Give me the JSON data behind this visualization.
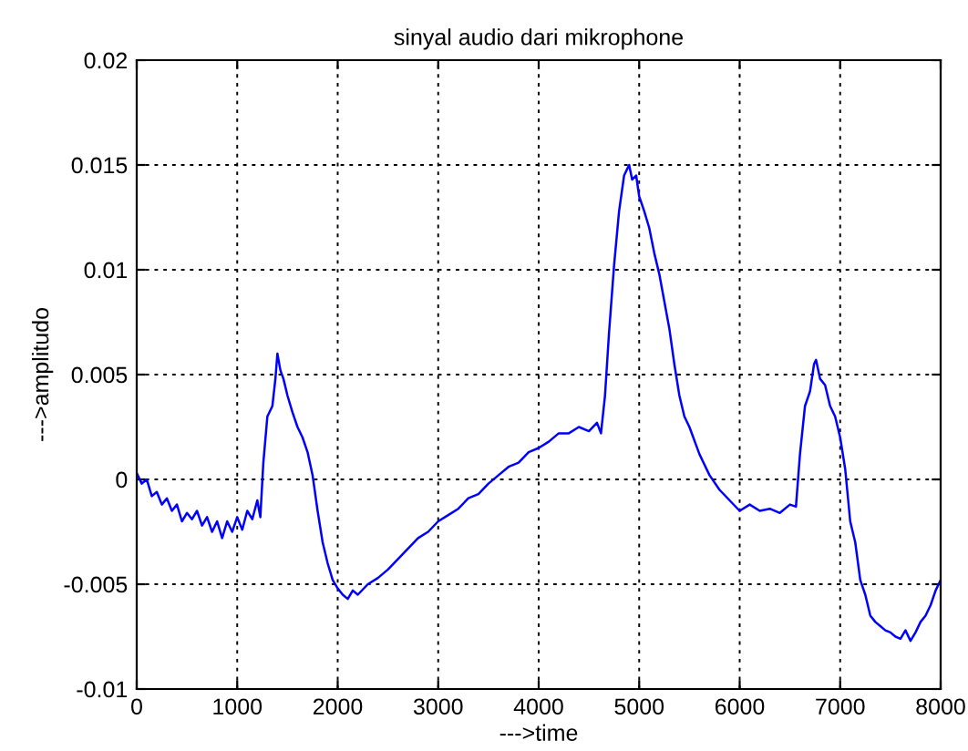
{
  "chart_data": {
    "type": "line",
    "title": "sinyal audio dari mikrophone",
    "xlabel": "--->time",
    "ylabel": "--->amplitudo",
    "series": [
      {
        "color": "#0000ff",
        "x": [
          0,
          50,
          100,
          150,
          200,
          250,
          300,
          350,
          400,
          450,
          500,
          550,
          600,
          650,
          700,
          750,
          800,
          850,
          900,
          950,
          1000,
          1050,
          1100,
          1150,
          1200,
          1230,
          1260,
          1300,
          1350,
          1380,
          1400,
          1430,
          1460,
          1500,
          1550,
          1600,
          1650,
          1700,
          1750,
          1800,
          1850,
          1900,
          1950,
          2000,
          2050,
          2100,
          2150,
          2200,
          2300,
          2400,
          2500,
          2600,
          2700,
          2800,
          2900,
          3000,
          3100,
          3200,
          3300,
          3400,
          3500,
          3600,
          3700,
          3800,
          3900,
          4000,
          4100,
          4200,
          4300,
          4400,
          4500,
          4580,
          4620,
          4660,
          4700,
          4750,
          4800,
          4850,
          4880,
          4900,
          4930,
          4970,
          5000,
          5050,
          5100,
          5150,
          5200,
          5250,
          5300,
          5350,
          5400,
          5450,
          5500,
          5600,
          5700,
          5800,
          5900,
          6000,
          6100,
          6200,
          6300,
          6400,
          6500,
          6560,
          6600,
          6650,
          6700,
          6740,
          6760,
          6800,
          6850,
          6900,
          6950,
          7000,
          7050,
          7100,
          7150,
          7200,
          7250,
          7300,
          7350,
          7400,
          7450,
          7500,
          7550,
          7600,
          7650,
          7700,
          7750,
          7800,
          7850,
          7900,
          7950,
          8000
        ],
        "values": [
          0.0003,
          -0.0002,
          0.0,
          -0.0008,
          -0.0006,
          -0.0012,
          -0.0009,
          -0.0015,
          -0.0012,
          -0.002,
          -0.0016,
          -0.0019,
          -0.0015,
          -0.0022,
          -0.0018,
          -0.0025,
          -0.002,
          -0.0028,
          -0.002,
          -0.0025,
          -0.0018,
          -0.0024,
          -0.0015,
          -0.0019,
          -0.001,
          -0.0018,
          0.0008,
          0.003,
          0.0035,
          0.0048,
          0.006,
          0.0052,
          0.0048,
          0.004,
          0.0032,
          0.0025,
          0.002,
          0.0013,
          0.0002,
          -0.0015,
          -0.003,
          -0.004,
          -0.0048,
          -0.0052,
          -0.0055,
          -0.0057,
          -0.0053,
          -0.0055,
          -0.005,
          -0.0047,
          -0.0043,
          -0.0038,
          -0.0033,
          -0.0028,
          -0.0025,
          -0.002,
          -0.0017,
          -0.0014,
          -0.0009,
          -0.0007,
          -0.0002,
          0.0002,
          0.0006,
          0.0008,
          0.0013,
          0.0015,
          0.0018,
          0.0022,
          0.0022,
          0.0025,
          0.0023,
          0.0027,
          0.0022,
          0.004,
          0.007,
          0.0102,
          0.0128,
          0.0145,
          0.0148,
          0.015,
          0.0143,
          0.0145,
          0.0135,
          0.0128,
          0.012,
          0.0108,
          0.0098,
          0.0085,
          0.0072,
          0.0055,
          0.004,
          0.003,
          0.0025,
          0.0012,
          0.0002,
          -0.0005,
          -0.001,
          -0.0015,
          -0.0012,
          -0.0015,
          -0.0014,
          -0.0016,
          -0.0012,
          -0.0013,
          0.0012,
          0.0035,
          0.0042,
          0.0055,
          0.0057,
          0.0048,
          0.0045,
          0.0035,
          0.003,
          0.002,
          0.0005,
          -0.002,
          -0.003,
          -0.0048,
          -0.0055,
          -0.0065,
          -0.0068,
          -0.007,
          -0.0072,
          -0.0073,
          -0.0075,
          -0.0076,
          -0.0072,
          -0.0077,
          -0.0073,
          -0.0068,
          -0.0065,
          -0.006,
          -0.0053,
          -0.0048
        ]
      }
    ],
    "xlim": [
      0,
      8000
    ],
    "xticks": [
      0,
      1000,
      2000,
      3000,
      4000,
      5000,
      6000,
      7000,
      8000
    ],
    "ylim": [
      -0.01,
      0.02
    ],
    "yticks": [
      -0.01,
      -0.005,
      0,
      0.005,
      0.01,
      0.015,
      0.02
    ],
    "grid": true,
    "line_style": "solid",
    "marker": "none"
  }
}
